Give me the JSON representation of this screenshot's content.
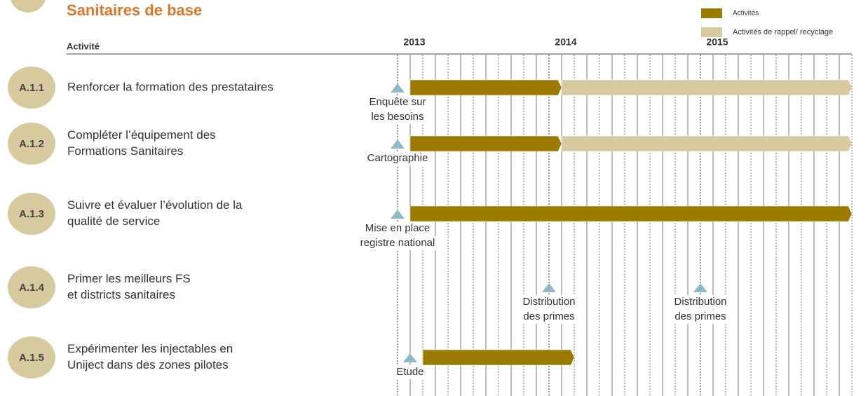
{
  "chart_data": {
    "type": "gantt",
    "title": "Sanitaires de base",
    "column_header": "Activité",
    "xlim": [
      2013,
      2016
    ],
    "xticks": [
      2013,
      2014,
      2015
    ],
    "series": [
      {
        "name": "Activités",
        "color": "#9a7b00"
      },
      {
        "name": "Activités de rappel/ recyclage",
        "color": "#d6ca9e"
      }
    ],
    "tasks": [
      {
        "id": "A.1.1",
        "label": [
          "Renforcer la formation des prestataires"
        ],
        "bars": [
          {
            "series": 0,
            "start": 2013.083,
            "end": 2014.083
          },
          {
            "series": 1,
            "start": 2014.083,
            "end": 2016
          }
        ],
        "milestones": [
          {
            "x": 2013,
            "label": [
              "Enquête sur",
              "les besoins"
            ]
          }
        ]
      },
      {
        "id": "A.1.2",
        "label": [
          "Compléter l’équipement des",
          "Formations Sanitaires"
        ],
        "bars": [
          {
            "series": 0,
            "start": 2013.083,
            "end": 2014.083
          },
          {
            "series": 1,
            "start": 2014.083,
            "end": 2016
          }
        ],
        "milestones": [
          {
            "x": 2013,
            "label": [
              "Cartographie"
            ]
          }
        ]
      },
      {
        "id": "A.1.3",
        "label": [
          "Suivre et évaluer l’évolution de la",
          "qualité de service"
        ],
        "bars": [
          {
            "series": 0,
            "start": 2013.083,
            "end": 2016
          }
        ],
        "milestones": [
          {
            "x": 2013,
            "label": [
              "Mise en place",
              "registre national"
            ]
          }
        ]
      },
      {
        "id": "A.1.4",
        "label": [
          "Primer les meilleurs FS",
          "et districts sanitaires"
        ],
        "bars": [],
        "milestones": [
          {
            "x": 2014,
            "label": [
              "Distribution",
              "des primes"
            ]
          },
          {
            "x": 2015,
            "label": [
              "Distribution",
              "des primes"
            ]
          }
        ]
      },
      {
        "id": "A.1.5",
        "label": [
          "Expérimenter les injectables en",
          "Uniject dans des zones pilotes"
        ],
        "bars": [
          {
            "series": 0,
            "start": 2013.167,
            "end": 2014.167
          }
        ],
        "milestones": [
          {
            "x": 2013.083,
            "label": [
              "Etude"
            ]
          }
        ]
      }
    ]
  }
}
